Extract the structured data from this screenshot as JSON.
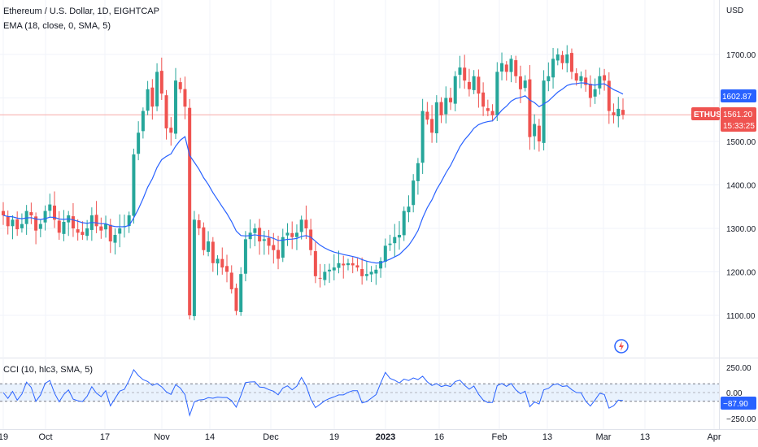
{
  "header": {
    "title": "Ethereum / U.S. Dollar, 1D, EIGHTCAP",
    "indicator": "EMA (18, close, 0, SMA, 5)",
    "cci_indicator": "CCI (10, hlc3, SMA, 5)"
  },
  "axis": {
    "currency": "USD",
    "price_ticks": [
      "1700.00",
      "1600.00",
      "1500.00",
      "1400.00",
      "1300.00",
      "1200.00",
      "1100.00"
    ],
    "cci_ticks": [
      "250.00",
      "0.00",
      "−250.00"
    ],
    "x_ticks": [
      "19",
      "Oct",
      "17",
      "Nov",
      "14",
      "Dec",
      "19",
      "2023",
      "16",
      "Feb",
      "13",
      "Mar",
      "13",
      "Apr"
    ]
  },
  "badges": {
    "ema_value": "1602.87",
    "symbol": "ETHUSD",
    "last_price": "1561.20",
    "countdown": "15:33:25",
    "cci_value": "−87.90"
  },
  "colors": {
    "up": "#26a69a",
    "down": "#ef5350",
    "ema": "#2962ff",
    "cci": "#2962ff",
    "grid": "#f0f3fa",
    "axis_text": "#131722"
  },
  "chart_data": {
    "type": "candlestick",
    "price_axis": {
      "min": 1050,
      "max": 1780,
      "unit": "USD"
    },
    "cci_axis": {
      "min": -280,
      "max": 280
    },
    "cci_band": [
      100,
      -100
    ],
    "grid": true,
    "last_price_line": 1561.2,
    "candles_close": [
      1330,
      1305,
      1320,
      1298,
      1310,
      1340,
      1330,
      1295,
      1310,
      1340,
      1355,
      1320,
      1290,
      1315,
      1330,
      1300,
      1290,
      1285,
      1300,
      1330,
      1305,
      1295,
      1310,
      1270,
      1285,
      1300,
      1305,
      1330,
      1470,
      1520,
      1570,
      1620,
      1580,
      1660,
      1610,
      1530,
      1520,
      1640,
      1620,
      1580,
      1100,
      1320,
      1300,
      1250,
      1270,
      1220,
      1230,
      1210,
      1200,
      1160,
      1110,
      1195,
      1275,
      1290,
      1300,
      1270,
      1275,
      1260,
      1250,
      1230,
      1280,
      1290,
      1280,
      1290,
      1320,
      1300,
      1250,
      1190,
      1185,
      1200,
      1205,
      1210,
      1220,
      1215,
      1220,
      1215,
      1210,
      1190,
      1195,
      1200,
      1205,
      1225,
      1260,
      1265,
      1280,
      1285,
      1340,
      1350,
      1410,
      1450,
      1570,
      1550,
      1520,
      1590,
      1560,
      1600,
      1590,
      1650,
      1670,
      1640,
      1620,
      1650,
      1610,
      1580,
      1570,
      1560,
      1660,
      1680,
      1660,
      1690,
      1650,
      1620,
      1640,
      1510,
      1540,
      1500,
      1640,
      1650,
      1690,
      1700,
      1680,
      1700,
      1660,
      1640,
      1650,
      1630,
      1600,
      1620,
      1650,
      1640,
      1570,
      1560,
      1575,
      1561
    ]
  }
}
